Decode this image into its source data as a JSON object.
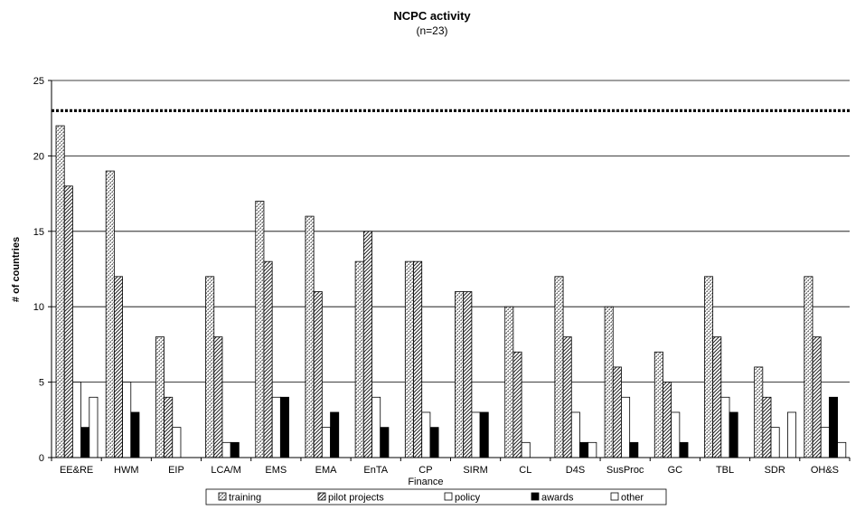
{
  "chart_data": {
    "type": "bar",
    "title": "NCPC activity",
    "subtitle": "(n=23)",
    "xlabel": "",
    "ylabel": "# of countries",
    "ylim": [
      0,
      25
    ],
    "yticks": [
      0,
      5,
      10,
      15,
      20,
      25
    ],
    "grid": true,
    "reference_line": 23,
    "legend_position": "bottom",
    "categories": [
      "EE&RE",
      "HWM",
      "EIP",
      "LCA/M",
      "EMS",
      "EMA",
      "EnTA",
      "CP",
      "SIRM",
      "CL",
      "D4S",
      "SusProc",
      "GC",
      "TBL",
      "SDR",
      "OH&S"
    ],
    "category_sublabels": [
      "",
      "",
      "",
      "",
      "",
      "",
      "",
      "Finance",
      "",
      "",
      "",
      "",
      "",
      "",
      "",
      ""
    ],
    "series": [
      {
        "name": "training",
        "values": [
          22,
          19,
          8,
          12,
          17,
          16,
          13,
          13,
          11,
          10,
          12,
          10,
          7,
          12,
          6,
          12
        ]
      },
      {
        "name": "pilot projects",
        "values": [
          18,
          12,
          4,
          8,
          13,
          11,
          15,
          13,
          11,
          7,
          8,
          6,
          5,
          8,
          4,
          8
        ]
      },
      {
        "name": "policy",
        "values": [
          5,
          5,
          2,
          1,
          4,
          2,
          4,
          3,
          3,
          1,
          3,
          4,
          3,
          4,
          2,
          2
        ]
      },
      {
        "name": "awards",
        "values": [
          2,
          3,
          0,
          1,
          4,
          3,
          2,
          2,
          3,
          0,
          1,
          1,
          1,
          3,
          0,
          4
        ]
      },
      {
        "name": "other",
        "values": [
          4,
          0,
          0,
          0,
          0,
          0,
          0,
          0,
          0,
          0,
          1,
          0,
          0,
          0,
          3,
          1
        ]
      }
    ]
  }
}
